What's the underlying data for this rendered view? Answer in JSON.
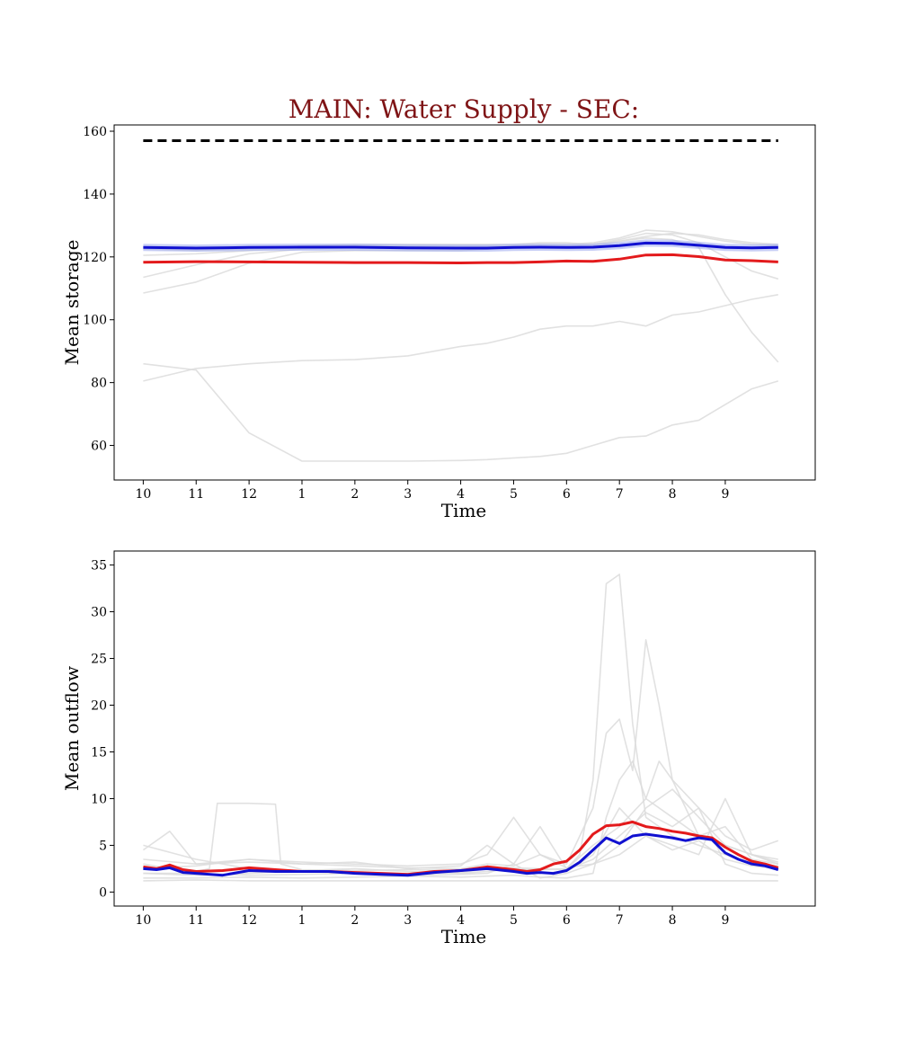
{
  "title": "MAIN: Water Supply - SEC:",
  "colors": {
    "title": "#7f1416",
    "red_series": "#e31a1c",
    "blue_series": "#1010d0",
    "blue_band": "#9aa8ee",
    "ensemble": "#dcdcdc",
    "capacity": "#000000"
  },
  "chart_data": [
    {
      "type": "line",
      "title": "MAIN: Water Supply - SEC:",
      "xlabel": "Time",
      "ylabel": "Mean storage",
      "x_ticks": [
        "10",
        "11",
        "12",
        "1",
        "2",
        "3",
        "4",
        "5",
        "6",
        "7",
        "8",
        "9"
      ],
      "x_range": [
        -0.55,
        12.7
      ],
      "ylim": [
        49,
        162
      ],
      "y_ticks": [
        60,
        80,
        100,
        120,
        140,
        160
      ],
      "grid": false,
      "reference_line": {
        "style": "dashed",
        "color": "#000000",
        "value": 157
      },
      "series": [
        {
          "role": "red",
          "color": "#e31a1c",
          "x": [
            0,
            1,
            2,
            3,
            4,
            5,
            6,
            6.5,
            7,
            7.5,
            8,
            8.5,
            9,
            9.5,
            10,
            10.5,
            11,
            11.5,
            12
          ],
          "y": [
            118.3,
            118.5,
            118.4,
            118.3,
            118.2,
            118.2,
            118.1,
            118.2,
            118.2,
            118.4,
            118.7,
            118.6,
            119.3,
            120.6,
            120.7,
            120.1,
            119.0,
            118.8,
            118.4
          ]
        },
        {
          "role": "blue",
          "color": "#1010d0",
          "x": [
            0,
            1,
            2,
            3,
            4,
            5,
            6,
            6.5,
            7,
            7.5,
            8,
            8.5,
            9,
            9.5,
            10,
            10.5,
            11,
            11.5,
            12
          ],
          "y": [
            123.0,
            122.8,
            123.0,
            123.1,
            123.1,
            122.9,
            122.8,
            122.8,
            123.0,
            123.1,
            123.0,
            123.1,
            123.6,
            124.4,
            124.3,
            123.7,
            123.0,
            122.9,
            123.0
          ]
        },
        {
          "role": "ensemble",
          "color": "#dcdcdc",
          "x": [
            0,
            1,
            2,
            3,
            4,
            5,
            6,
            6.5,
            7,
            7.5,
            8,
            8.5,
            9,
            9.5,
            10,
            10.5,
            11,
            11.5,
            12
          ],
          "y": [
            86.0,
            84.0,
            64.0,
            55.0,
            55.0,
            55.0,
            55.2,
            55.5,
            56.0,
            56.5,
            57.5,
            60.0,
            62.5,
            63.0,
            66.5,
            68.0,
            73.0,
            78.0,
            80.5
          ]
        },
        {
          "role": "ensemble",
          "color": "#dcdcdc",
          "x": [
            0,
            1,
            2,
            3,
            4,
            5,
            6,
            6.5,
            7,
            7.5,
            8,
            8.5,
            9,
            9.5,
            10,
            10.5,
            11,
            11.5,
            12
          ],
          "y": [
            80.5,
            84.5,
            86.0,
            87.0,
            87.3,
            88.5,
            91.5,
            92.5,
            94.5,
            97.0,
            98.0,
            98.0,
            99.5,
            98.0,
            101.5,
            102.5,
            104.5,
            106.5,
            108.0
          ]
        },
        {
          "role": "ensemble",
          "color": "#dcdcdc",
          "x": [
            0,
            1,
            2,
            3,
            4,
            5,
            6,
            6.5,
            7,
            7.5,
            8,
            8.5,
            9,
            9.5,
            10,
            10.5,
            11,
            11.5,
            12
          ],
          "y": [
            108.5,
            112.0,
            118.0,
            121.5,
            122.0,
            122.0,
            122.0,
            122.5,
            123.0,
            123.5,
            123.0,
            123.5,
            125.0,
            126.0,
            125.5,
            123.0,
            108.0,
            96.0,
            86.5
          ]
        },
        {
          "role": "ensemble",
          "color": "#dcdcdc",
          "x": [
            0,
            1,
            2,
            3,
            4,
            5,
            6,
            6.5,
            7,
            7.5,
            8,
            8.5,
            9,
            9.5,
            10,
            10.5,
            11,
            11.5,
            12
          ],
          "y": [
            113.5,
            117.5,
            121.0,
            122.5,
            123.0,
            123.0,
            123.0,
            123.0,
            123.0,
            123.5,
            123.5,
            124.0,
            125.5,
            127.5,
            127.0,
            124.5,
            120.0,
            115.5,
            113.0
          ]
        },
        {
          "role": "ensemble",
          "color": "#dcdcdc",
          "x": [
            0,
            1,
            2,
            3,
            4,
            5,
            6,
            6.5,
            7,
            7.5,
            8,
            8.5,
            9,
            9.5,
            10,
            10.5,
            11,
            11.5,
            12
          ],
          "y": [
            120.5,
            121.0,
            122.0,
            123.0,
            123.5,
            123.5,
            123.5,
            123.5,
            123.5,
            124.0,
            124.0,
            124.5,
            126.0,
            128.5,
            128.0,
            126.5,
            125.0,
            124.0,
            123.5
          ]
        },
        {
          "role": "ensemble",
          "color": "#dcdcdc",
          "x": [
            0,
            1,
            2,
            3,
            4,
            5,
            6,
            6.5,
            7,
            7.5,
            8,
            8.5,
            9,
            9.5,
            10,
            10.5,
            11,
            11.5,
            12
          ],
          "y": [
            122.5,
            122.0,
            122.5,
            123.5,
            124.0,
            124.0,
            124.0,
            124.0,
            124.0,
            124.5,
            124.5,
            124.0,
            125.0,
            126.5,
            127.5,
            127.0,
            125.5,
            124.5,
            124.0
          ]
        }
      ]
    },
    {
      "type": "line",
      "xlabel": "Time",
      "ylabel": "Mean outflow",
      "x_ticks": [
        "10",
        "11",
        "12",
        "1",
        "2",
        "3",
        "4",
        "5",
        "6",
        "7",
        "8",
        "9"
      ],
      "x_range": [
        -0.55,
        12.7
      ],
      "ylim": [
        -1.5,
        36.5
      ],
      "y_ticks": [
        0,
        5,
        10,
        15,
        20,
        25,
        30,
        35
      ],
      "grid": false,
      "series": [
        {
          "role": "red",
          "color": "#e31a1c",
          "x": [
            0,
            0.25,
            0.5,
            0.75,
            1,
            1.5,
            2,
            2.5,
            3,
            3.5,
            4,
            4.5,
            5,
            5.5,
            6,
            6.5,
            7,
            7.25,
            7.5,
            7.75,
            8,
            8.25,
            8.5,
            8.75,
            9,
            9.25,
            9.5,
            9.75,
            10,
            10.25,
            10.5,
            10.75,
            11,
            11.25,
            11.5,
            11.75,
            12
          ],
          "y": [
            2.7,
            2.5,
            2.9,
            2.4,
            2.2,
            2.3,
            2.6,
            2.4,
            2.2,
            2.2,
            2.1,
            2.0,
            1.9,
            2.2,
            2.3,
            2.7,
            2.4,
            2.2,
            2.4,
            3.0,
            3.3,
            4.5,
            6.2,
            7.1,
            7.2,
            7.5,
            7.0,
            6.8,
            6.5,
            6.3,
            6.0,
            5.8,
            4.8,
            4.0,
            3.3,
            3.0,
            2.6
          ]
        },
        {
          "role": "blue",
          "color": "#1010d0",
          "x": [
            0,
            0.25,
            0.5,
            0.75,
            1,
            1.5,
            2,
            2.5,
            3,
            3.5,
            4,
            4.5,
            5,
            5.5,
            6,
            6.5,
            7,
            7.25,
            7.5,
            7.75,
            8,
            8.25,
            8.5,
            8.75,
            9,
            9.25,
            9.5,
            9.75,
            10,
            10.25,
            10.5,
            10.75,
            11,
            11.25,
            11.5,
            11.75,
            12
          ],
          "y": [
            2.5,
            2.4,
            2.6,
            2.1,
            2.0,
            1.8,
            2.3,
            2.2,
            2.2,
            2.2,
            2.0,
            1.9,
            1.8,
            2.1,
            2.3,
            2.5,
            2.2,
            2.0,
            2.1,
            2.0,
            2.3,
            3.2,
            4.5,
            5.8,
            5.2,
            6.0,
            6.2,
            6.0,
            5.8,
            5.5,
            5.8,
            5.6,
            4.2,
            3.5,
            3.0,
            2.8,
            2.4
          ]
        },
        {
          "role": "ensemble",
          "color": "#dcdcdc",
          "x": [
            0,
            0.5,
            1,
            1.25,
            1.4,
            2,
            2.5,
            2.6,
            3,
            4,
            5,
            6,
            6.5,
            7,
            7.5,
            8,
            8.25,
            8.5,
            8.75,
            9,
            9.25,
            9.5,
            10,
            10.5,
            11,
            11.5,
            12
          ],
          "y": [
            3.0,
            2.5,
            2.2,
            2.5,
            9.5,
            9.5,
            9.4,
            3.0,
            2.4,
            2.3,
            2.4,
            2.3,
            2.6,
            2.4,
            2.4,
            2.5,
            4.0,
            12.0,
            33.0,
            34.0,
            18.0,
            8.0,
            6.0,
            5.0,
            4.0,
            3.0,
            2.8
          ]
        },
        {
          "role": "ensemble",
          "color": "#dcdcdc",
          "x": [
            0,
            0.5,
            1,
            2,
            3,
            4,
            5,
            6,
            6.5,
            7,
            7.5,
            8,
            8.5,
            8.75,
            9,
            9.25,
            9.5,
            9.75,
            10,
            10.5,
            11,
            11.5,
            12
          ],
          "y": [
            4.5,
            6.5,
            3.0,
            3.5,
            3.2,
            3.0,
            2.8,
            3.0,
            4.0,
            8.0,
            4.0,
            3.0,
            9.0,
            17.0,
            18.5,
            13.0,
            27.0,
            20.0,
            12.0,
            6.0,
            5.0,
            4.0,
            3.5
          ]
        },
        {
          "role": "ensemble",
          "color": "#dcdcdc",
          "x": [
            0,
            1,
            2,
            3,
            4,
            5,
            6,
            6.5,
            7,
            7.5,
            8,
            8.5,
            8.75,
            9,
            9.25,
            9.5,
            9.75,
            10,
            10.5,
            11,
            11.5,
            12
          ],
          "y": [
            1.5,
            1.5,
            1.6,
            1.5,
            1.6,
            1.7,
            1.6,
            1.7,
            1.8,
            1.6,
            1.5,
            2.0,
            8.0,
            12.0,
            14.0,
            10.0,
            14.0,
            12.0,
            9.0,
            3.0,
            2.0,
            1.8
          ]
        },
        {
          "role": "ensemble",
          "color": "#dcdcdc",
          "x": [
            0,
            1,
            2,
            3,
            4,
            5,
            6,
            6.5,
            7,
            7.5,
            8,
            8.5,
            9,
            9.5,
            10,
            10.5,
            11,
            11.5,
            12
          ],
          "y": [
            3.5,
            3.0,
            3.2,
            3.0,
            3.2,
            2.5,
            2.8,
            5.0,
            3.0,
            7.0,
            2.5,
            5.0,
            7.0,
            10.0,
            8.0,
            6.0,
            7.0,
            3.5,
            3.0
          ]
        },
        {
          "role": "ensemble",
          "color": "#dcdcdc",
          "x": [
            0,
            1,
            2,
            3,
            4,
            5,
            6,
            6.5,
            7,
            7.5,
            8,
            8.5,
            9,
            9.5,
            10,
            10.5,
            11,
            11.5,
            12
          ],
          "y": [
            2.0,
            2.0,
            1.8,
            1.9,
            2.0,
            1.8,
            1.9,
            2.0,
            3.0,
            1.5,
            2.0,
            3.0,
            4.0,
            6.0,
            5.0,
            4.0,
            10.0,
            4.0,
            3.0
          ]
        },
        {
          "role": "ensemble",
          "color": "#dcdcdc",
          "x": [
            0,
            1,
            2,
            3,
            4,
            5,
            6,
            6.5,
            7,
            7.5,
            8,
            8.5,
            9,
            9.5,
            10,
            10.5,
            11,
            11.5,
            12
          ],
          "y": [
            1.2,
            1.3,
            1.2,
            1.2,
            1.2,
            1.2,
            1.2,
            1.2,
            1.2,
            1.2,
            1.2,
            1.2,
            1.2,
            1.2,
            1.2,
            1.2,
            1.2,
            1.2,
            1.2
          ]
        },
        {
          "role": "ensemble",
          "color": "#dcdcdc",
          "x": [
            0,
            1,
            2,
            3,
            4,
            5,
            6,
            6.5,
            7,
            7.5,
            8,
            8.5,
            9,
            9.5,
            10,
            10.5,
            11,
            11.5,
            12
          ],
          "y": [
            2.5,
            2.8,
            3.5,
            3.0,
            2.8,
            2.6,
            2.5,
            3.0,
            2.8,
            4.0,
            2.6,
            3.0,
            5.0,
            9.0,
            11.0,
            8.0,
            5.0,
            4.0,
            3.2
          ]
        },
        {
          "role": "ensemble",
          "color": "#dcdcdc",
          "x": [
            0,
            1,
            2,
            3,
            4,
            5,
            6,
            6.5,
            7,
            7.5,
            8,
            8.5,
            9,
            9.5,
            10,
            10.5,
            11,
            11.5,
            12
          ],
          "y": [
            5.0,
            3.5,
            2.5,
            2.2,
            2.0,
            2.0,
            2.1,
            2.5,
            2.6,
            2.5,
            2.4,
            3.5,
            6.0,
            8.5,
            7.0,
            9.0,
            6.0,
            4.5,
            5.5
          ]
        },
        {
          "role": "ensemble",
          "color": "#dcdcdc",
          "x": [
            0,
            1,
            2,
            3,
            4,
            5,
            6,
            6.5,
            7,
            7.5,
            8,
            8.5,
            9,
            9.5,
            10,
            10.5,
            11,
            11.5,
            12
          ],
          "y": [
            2.0,
            1.8,
            2.0,
            2.3,
            2.5,
            2.2,
            2.0,
            2.2,
            2.5,
            2.0,
            2.2,
            4.0,
            9.0,
            6.0,
            4.5,
            5.5,
            3.5,
            2.8,
            2.5
          ]
        }
      ]
    }
  ]
}
